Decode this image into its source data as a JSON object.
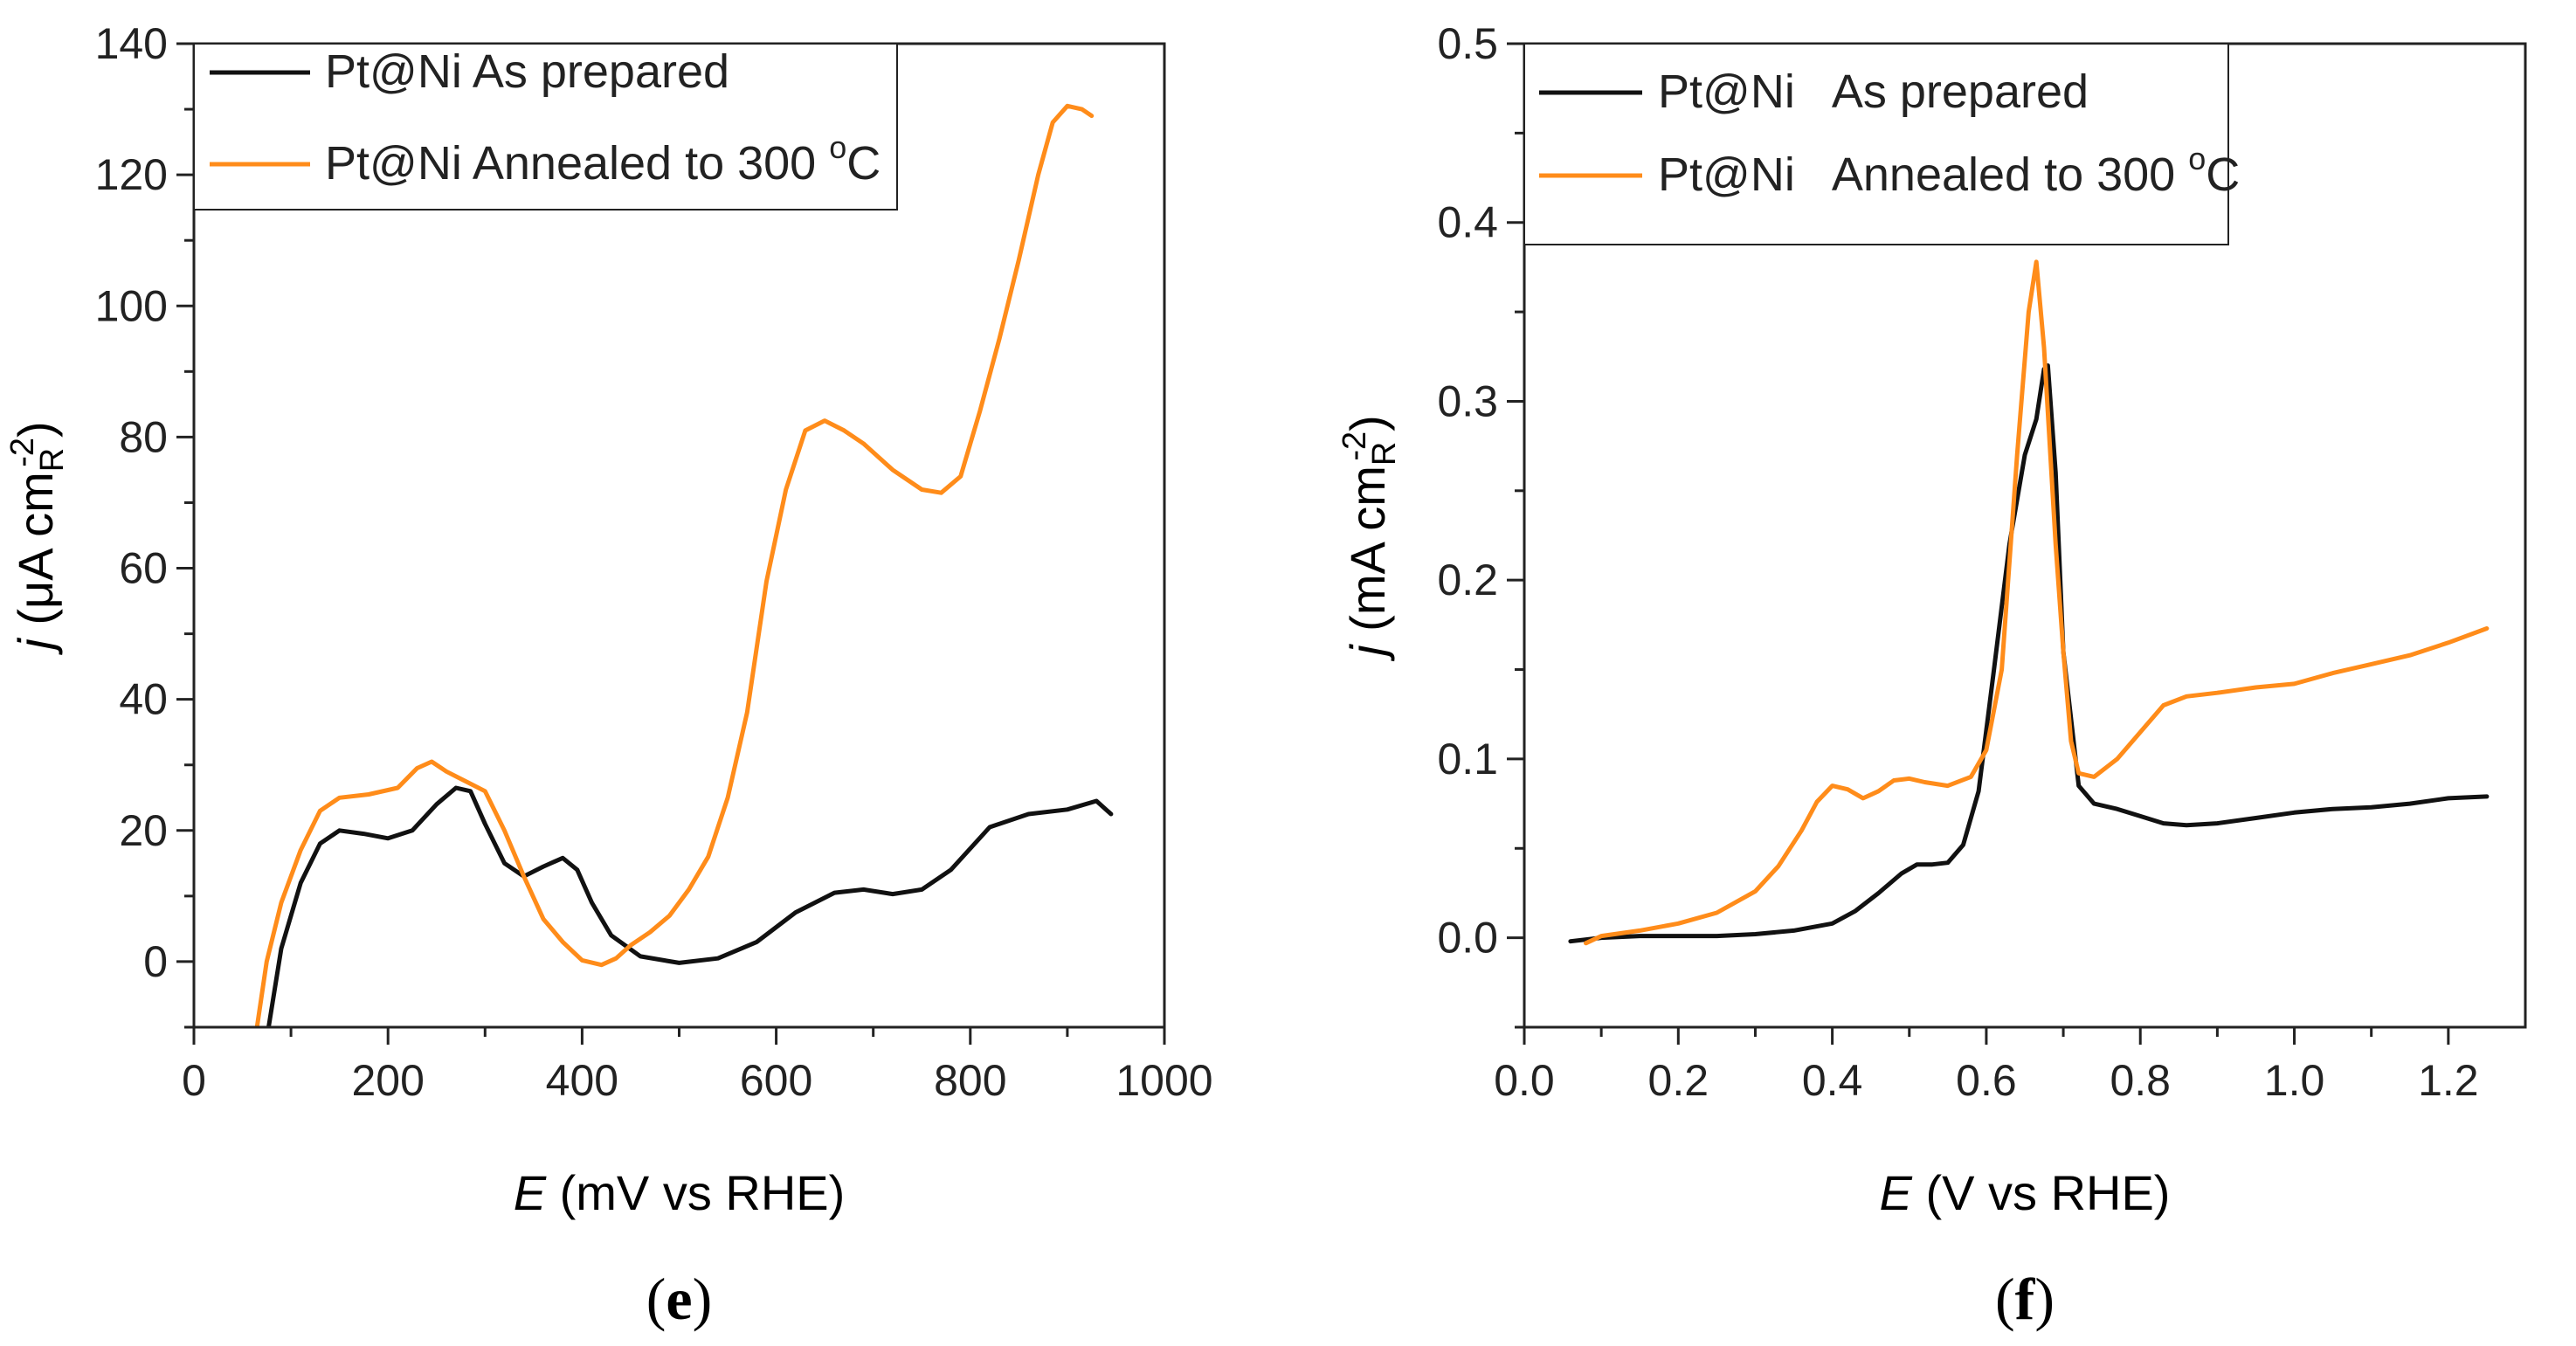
{
  "colors": {
    "as_prepared": "#111111",
    "annealed": "#ff8c1a",
    "axis": "#222222",
    "text": "#222222"
  },
  "chart_data": [
    {
      "type": "line",
      "panel_label": "e",
      "xlabel": {
        "italic": "E",
        "rest": " (mV vs RHE)"
      },
      "ylabel": {
        "italic": "j",
        "pre": " (μA cm",
        "sub": "R",
        "sup": "-2",
        "post": ")"
      },
      "xlim": [
        0,
        1000
      ],
      "ylim": [
        -10,
        140
      ],
      "xticks": [
        0,
        200,
        400,
        600,
        800,
        1000
      ],
      "yticks": [
        0,
        20,
        40,
        60,
        80,
        100,
        120,
        140
      ],
      "legend_position": "top-left",
      "series": [
        {
          "name": "as_prepared",
          "legend": {
            "main": "Pt@Ni As prepared",
            "sup": "",
            "tail": ""
          },
          "x": [
            77,
            90,
            110,
            130,
            150,
            175,
            200,
            225,
            250,
            270,
            285,
            300,
            320,
            340,
            360,
            380,
            395,
            410,
            430,
            460,
            500,
            540,
            580,
            620,
            660,
            690,
            720,
            750,
            780,
            820,
            860,
            900,
            930,
            945
          ],
          "y": [
            -10,
            2,
            12,
            18,
            20,
            19.5,
            18.8,
            20,
            24,
            26.5,
            26,
            21,
            15,
            13,
            14.5,
            15.8,
            14,
            9,
            4,
            0.8,
            -0.2,
            0.5,
            3,
            7.5,
            10.5,
            11,
            10.3,
            11,
            14,
            20.5,
            22.5,
            23.2,
            24.5,
            22.5
          ]
        },
        {
          "name": "annealed",
          "legend": {
            "main": "Pt@Ni Annealed to 300 ",
            "sup": "o",
            "tail": "C"
          },
          "x": [
            65,
            75,
            90,
            110,
            130,
            150,
            180,
            210,
            230,
            245,
            260,
            280,
            300,
            320,
            340,
            360,
            380,
            400,
            420,
            435,
            450,
            470,
            490,
            510,
            530,
            550,
            570,
            590,
            610,
            630,
            650,
            670,
            690,
            720,
            750,
            770,
            790,
            810,
            830,
            850,
            870,
            885,
            900,
            915,
            925
          ],
          "y": [
            -10,
            0,
            9,
            17,
            23,
            25,
            25.5,
            26.5,
            29.5,
            30.5,
            29,
            27.5,
            26,
            20,
            13,
            6.5,
            3,
            0.2,
            -0.5,
            0.5,
            2.5,
            4.5,
            7,
            11,
            16,
            25,
            38,
            58,
            72,
            81,
            82.5,
            81,
            79,
            75,
            72,
            71.5,
            74,
            84,
            95,
            107,
            120,
            128,
            130.5,
            130,
            129
          ]
        }
      ]
    },
    {
      "type": "line",
      "panel_label": "f",
      "xlabel": {
        "italic": "E",
        "rest": " (V vs RHE)"
      },
      "ylabel": {
        "italic": "j",
        "pre": " (mA cm",
        "sub": "R",
        "sup": "-2",
        "post": ")"
      },
      "xlim": [
        0.0,
        1.3
      ],
      "ylim": [
        -0.05,
        0.5
      ],
      "xticks": [
        0.0,
        0.2,
        0.4,
        0.6,
        0.8,
        1.0,
        1.2
      ],
      "yticks": [
        0.0,
        0.1,
        0.2,
        0.3,
        0.4,
        0.5
      ],
      "xtick_labels": [
        "0.0",
        "0.2",
        "0.4",
        "0.6",
        "0.8",
        "1.0",
        "1.2"
      ],
      "ytick_labels": [
        "0.0",
        "0.1",
        "0.2",
        "0.3",
        "0.4",
        "0.5"
      ],
      "legend_position": "top-left",
      "series": [
        {
          "name": "as_prepared",
          "legend": {
            "main": "Pt@Ni   As prepared",
            "sup": "",
            "tail": ""
          },
          "x": [
            0.06,
            0.1,
            0.15,
            0.2,
            0.25,
            0.3,
            0.35,
            0.4,
            0.43,
            0.46,
            0.49,
            0.51,
            0.53,
            0.55,
            0.57,
            0.59,
            0.61,
            0.63,
            0.65,
            0.665,
            0.675,
            0.68,
            0.69,
            0.7,
            0.72,
            0.74,
            0.77,
            0.8,
            0.83,
            0.86,
            0.9,
            0.95,
            1.0,
            1.05,
            1.1,
            1.15,
            1.2,
            1.25
          ],
          "y": [
            -0.002,
            0.0,
            0.001,
            0.001,
            0.001,
            0.002,
            0.004,
            0.008,
            0.015,
            0.025,
            0.036,
            0.041,
            0.041,
            0.042,
            0.052,
            0.082,
            0.15,
            0.22,
            0.27,
            0.29,
            0.318,
            0.32,
            0.26,
            0.16,
            0.085,
            0.075,
            0.072,
            0.068,
            0.064,
            0.063,
            0.064,
            0.067,
            0.07,
            0.072,
            0.073,
            0.075,
            0.078,
            0.079
          ]
        },
        {
          "name": "annealed",
          "legend": {
            "main": "Pt@Ni   Annealed to 300 ",
            "sup": "o",
            "tail": "C"
          },
          "x": [
            0.08,
            0.1,
            0.15,
            0.2,
            0.25,
            0.3,
            0.33,
            0.36,
            0.38,
            0.4,
            0.42,
            0.44,
            0.46,
            0.48,
            0.5,
            0.52,
            0.55,
            0.58,
            0.6,
            0.62,
            0.64,
            0.655,
            0.665,
            0.675,
            0.69,
            0.7,
            0.71,
            0.72,
            0.74,
            0.77,
            0.8,
            0.83,
            0.86,
            0.9,
            0.95,
            1.0,
            1.05,
            1.1,
            1.15,
            1.2,
            1.25
          ],
          "y": [
            -0.003,
            0.001,
            0.004,
            0.008,
            0.014,
            0.026,
            0.04,
            0.06,
            0.076,
            0.085,
            0.083,
            0.078,
            0.082,
            0.088,
            0.089,
            0.087,
            0.085,
            0.09,
            0.105,
            0.15,
            0.27,
            0.35,
            0.378,
            0.33,
            0.22,
            0.16,
            0.11,
            0.092,
            0.09,
            0.1,
            0.115,
            0.13,
            0.135,
            0.137,
            0.14,
            0.142,
            0.148,
            0.153,
            0.158,
            0.165,
            0.173
          ]
        }
      ]
    }
  ]
}
